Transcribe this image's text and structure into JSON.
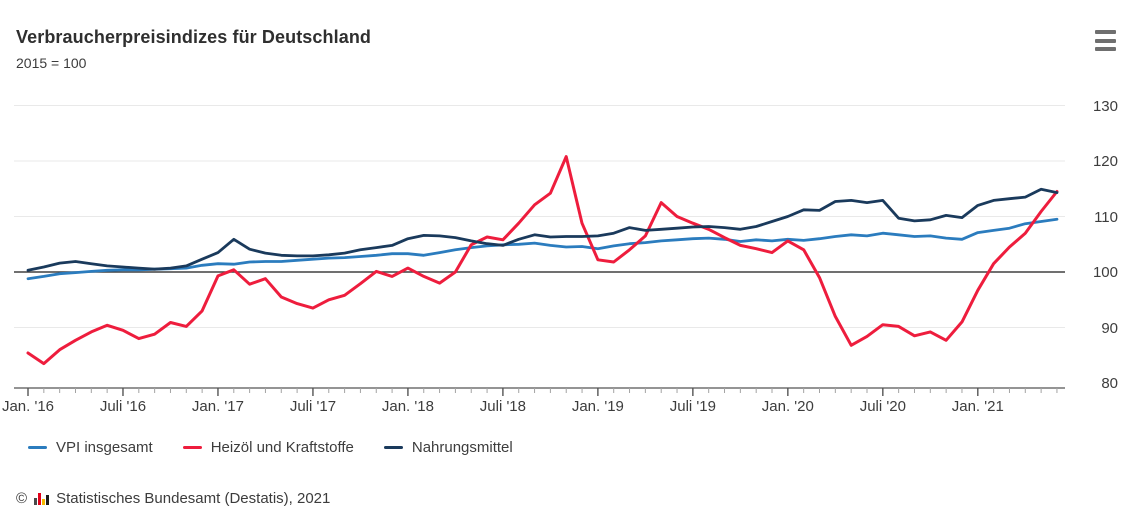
{
  "header": {
    "title": "Verbraucherpreisindizes für Deutschland",
    "subtitle": "2015 = 100"
  },
  "menu": {
    "icon": "hamburger-menu"
  },
  "chart_data": {
    "type": "line",
    "title": "Verbraucherpreisindizes für Deutschland",
    "subtitle": "2015 = 100",
    "x_unit": "month",
    "x_range": [
      "Jan 2016",
      "Jun 2021"
    ],
    "x_tick_labels": [
      "Jan. '16",
      "Juli '16",
      "Jan. '17",
      "Juli '17",
      "Jan. '18",
      "Juli '18",
      "Jan. '19",
      "Juli '19",
      "Jan. '20",
      "Juli '20",
      "Jan. '21"
    ],
    "y_ticks": [
      80,
      90,
      100,
      110,
      120,
      130
    ],
    "ylim": [
      80,
      130
    ],
    "baseline_value": 100,
    "grid": "horizontal-light",
    "legend_position": "bottom",
    "colors": {
      "vpi": "#2b7cbe",
      "fuel": "#ee1d3d",
      "food": "#1a3a5c",
      "baseline": "#404040",
      "grid": "#e9e9e9"
    },
    "series": [
      {
        "name": "VPI insgesamt",
        "color": "#2b7cbe",
        "values": [
          98.8,
          99.2,
          99.7,
          99.9,
          100.1,
          100.3,
          100.4,
          100.4,
          100.5,
          100.6,
          100.7,
          101.2,
          101.5,
          101.4,
          101.8,
          101.9,
          101.9,
          102.1,
          102.3,
          102.5,
          102.6,
          102.8,
          103.0,
          103.3,
          103.3,
          103.0,
          103.5,
          104.0,
          104.4,
          104.7,
          104.9,
          105.0,
          105.2,
          104.8,
          104.5,
          104.6,
          104.2,
          104.7,
          105.1,
          105.3,
          105.6,
          105.8,
          106.0,
          106.1,
          105.9,
          105.5,
          105.8,
          105.6,
          105.9,
          105.7,
          106.0,
          106.4,
          106.7,
          106.5,
          107.0,
          106.7,
          106.4,
          106.5,
          106.1,
          105.9,
          107.1,
          107.5,
          107.9,
          108.7,
          109.1,
          109.5
        ]
      },
      {
        "name": "Heizöl und Kraftstoffe",
        "color": "#ee1d3d",
        "values": [
          85.4,
          83.5,
          86.0,
          87.7,
          89.2,
          90.4,
          89.5,
          88.0,
          88.8,
          90.9,
          90.2,
          93.0,
          99.3,
          100.4,
          97.8,
          98.8,
          95.5,
          94.3,
          93.5,
          95.0,
          95.8,
          97.9,
          100.1,
          99.2,
          100.7,
          99.2,
          98.0,
          100.0,
          104.9,
          106.3,
          105.8,
          108.8,
          112.1,
          114.2,
          120.8,
          108.8,
          102.2,
          101.8,
          104.0,
          106.5,
          112.5,
          110.0,
          108.8,
          107.7,
          106.2,
          104.8,
          104.2,
          103.5,
          105.6,
          104.0,
          99.0,
          92.0,
          86.8,
          88.4,
          90.5,
          90.2,
          88.5,
          89.2,
          87.7,
          91.0,
          96.7,
          101.5,
          104.5,
          107.0,
          110.9,
          114.5
        ]
      },
      {
        "name": "Nahrungsmittel",
        "color": "#1a3a5c",
        "values": [
          100.3,
          100.9,
          101.6,
          101.9,
          101.5,
          101.1,
          100.9,
          100.7,
          100.5,
          100.7,
          101.1,
          102.3,
          103.5,
          105.9,
          104.1,
          103.4,
          103.0,
          102.9,
          102.9,
          103.1,
          103.4,
          104.0,
          104.4,
          104.8,
          106.0,
          106.6,
          106.5,
          106.2,
          105.6,
          105.1,
          104.8,
          105.9,
          106.7,
          106.3,
          106.4,
          106.4,
          106.5,
          107.0,
          108.0,
          107.5,
          107.7,
          107.9,
          108.1,
          108.2,
          108.0,
          107.7,
          108.2,
          109.1,
          110.0,
          111.2,
          111.1,
          112.7,
          112.9,
          112.5,
          112.9,
          109.7,
          109.2,
          109.4,
          110.2,
          109.8,
          112.0,
          112.9,
          113.2,
          113.5,
          114.9,
          114.3
        ]
      }
    ]
  },
  "footer": {
    "copyright": "©",
    "source": "Statistisches Bundesamt (Destatis), 2021"
  }
}
